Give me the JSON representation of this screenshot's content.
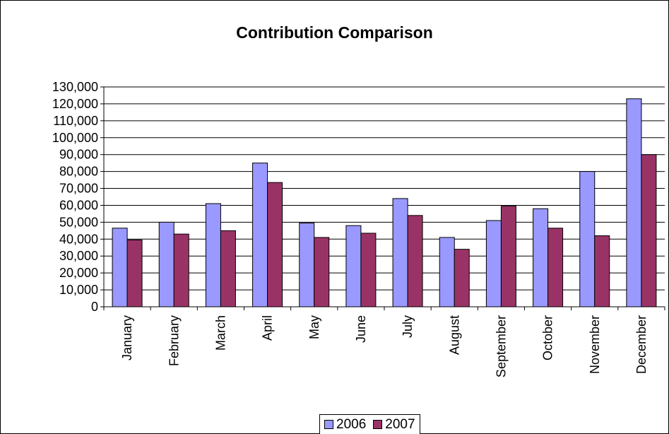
{
  "chart_data": {
    "type": "bar",
    "title": "Contribution Comparison",
    "categories": [
      "January",
      "February",
      "March",
      "April",
      "May",
      "June",
      "July",
      "August",
      "September",
      "October",
      "November",
      "December"
    ],
    "series": [
      {
        "name": "2006",
        "color": "#9999ff",
        "values": [
          46500,
          50000,
          61000,
          85000,
          49500,
          48000,
          64000,
          41000,
          51000,
          58000,
          80000,
          123000
        ]
      },
      {
        "name": "2007",
        "color": "#993366",
        "values": [
          39500,
          43000,
          45000,
          73500,
          41000,
          43500,
          54000,
          34000,
          59500,
          46500,
          42000,
          90000
        ]
      }
    ],
    "ylim": [
      0,
      130000
    ],
    "y_ticks": [
      "0",
      "10,000",
      "20,000",
      "30,000",
      "40,000",
      "50,000",
      "60,000",
      "70,000",
      "80,000",
      "90,000",
      "100,000",
      "110,000",
      "120,000",
      "130,000"
    ],
    "grid": true,
    "legend_position": "bottom"
  }
}
